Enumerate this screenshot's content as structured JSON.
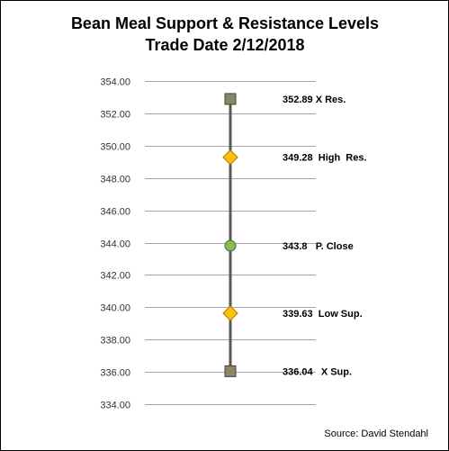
{
  "chart_data": {
    "type": "line",
    "title": "Bean Meal Support & Resistance Levels",
    "subtitle": "Trade Date 2/12/2018",
    "ylim": [
      334.0,
      354.0
    ],
    "ytick_step": 2.0,
    "grid": true,
    "points": [
      {
        "value": 352.89,
        "label": "352.89 X Res.",
        "marker": "square",
        "color": "#8c8560"
      },
      {
        "value": 349.28,
        "label": "349.28  High  Res.",
        "marker": "diamond",
        "color": "#ffc000"
      },
      {
        "value": 343.8,
        "label": "343.8   P. Close",
        "marker": "circle",
        "color": "#8fb85a"
      },
      {
        "value": 339.63,
        "label": "339.63  Low Sup.",
        "marker": "diamond",
        "color": "#ffc000"
      },
      {
        "value": 336.04,
        "label": "336.04   X Sup.",
        "marker": "square",
        "color": "#8c8560"
      }
    ],
    "line_color": "#595959",
    "source": "Source: David Stendahl"
  }
}
